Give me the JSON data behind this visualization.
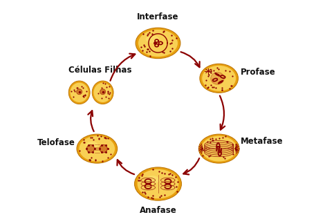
{
  "background_color": "#ffffff",
  "cell_fill_outer": "#f0b800",
  "cell_fill_inner": "#f5d040",
  "cell_edge": "#c8900a",
  "dark_red": "#8b0000",
  "arrow_color": "#8b0000",
  "labels": {
    "interfase": "Interfase",
    "profase": "Profase",
    "metafase": "Metafase",
    "anafase": "Anafase",
    "telofase": "Telofase",
    "celulas": "Células Filhas"
  },
  "label_fontsize": 8.5,
  "label_fontweight": "bold",
  "fig_width": 4.57,
  "fig_height": 3.14,
  "dpi": 100
}
